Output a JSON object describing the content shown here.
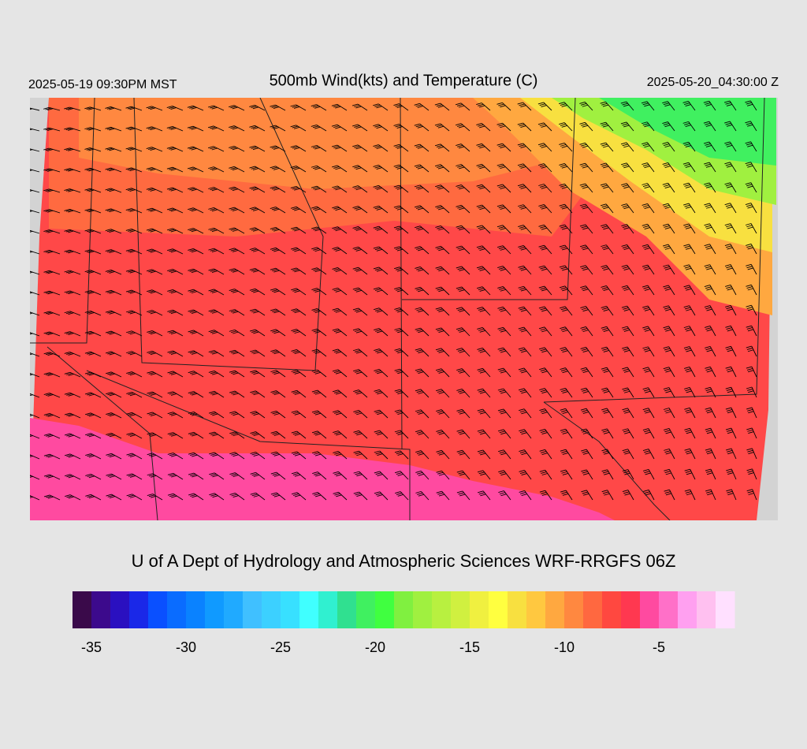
{
  "header": {
    "title": "500mb Wind(kts) and Temperature (C)",
    "local_time": "2025-05-19 09:30PM MST",
    "valid_time": "2025-05-20_04:30:00 Z"
  },
  "credit": "U of A Dept of Hydrology and Atmospheric Sciences WRF-RRGFS 06Z",
  "colorbar": {
    "lim": [
      -36,
      -1
    ],
    "ticks": [
      -35,
      -30,
      -25,
      -20,
      -15,
      -10,
      -5
    ],
    "colors": [
      "#3a0a4a",
      "#3c0a8c",
      "#2a10c0",
      "#1a28e8",
      "#0a50ff",
      "#0a6cff",
      "#0a82ff",
      "#109aff",
      "#20aaff",
      "#40c0ff",
      "#3cd0ff",
      "#38e0ff",
      "#40ffff",
      "#30f0d0",
      "#30e090",
      "#40f060",
      "#40ff40",
      "#80f040",
      "#a0f040",
      "#b8f040",
      "#d0f040",
      "#f0f040",
      "#ffff40",
      "#f8e040",
      "#ffc840",
      "#ffa840",
      "#ff8840",
      "#ff6840",
      "#ff4840",
      "#ff3850",
      "#ff4aa0",
      "#ff70c8",
      "#ffa0f0",
      "#ffc0f0",
      "#ffe0ff"
    ]
  }
}
